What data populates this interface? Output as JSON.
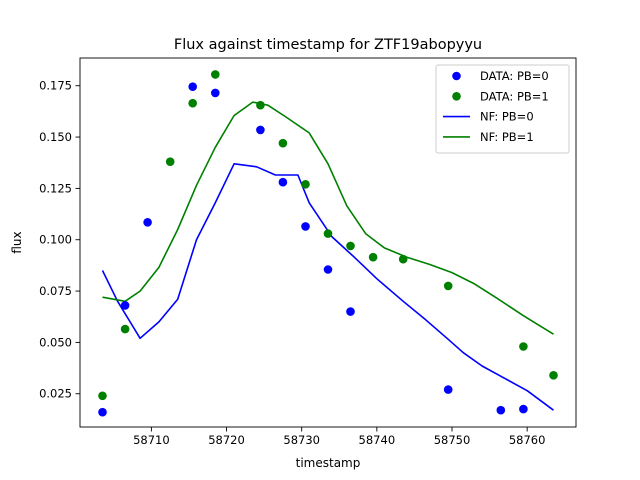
{
  "chart_data": {
    "type": "scatter",
    "title": "Flux against timestamp for ZTF19abopyyu",
    "xlabel": "timestamp",
    "ylabel": "flux",
    "xlim": [
      58700.5,
      58766.5
    ],
    "ylim": [
      0.0088,
      0.1885
    ],
    "xticks": [
      58710,
      58720,
      58730,
      58740,
      58750,
      58760
    ],
    "yticks": [
      0.025,
      0.05,
      0.075,
      0.1,
      0.125,
      0.15,
      0.175
    ],
    "ytick_labels": [
      "0.025",
      "0.050",
      "0.075",
      "0.100",
      "0.125",
      "0.150",
      "0.175"
    ],
    "grid": false,
    "legend_position": "top-right",
    "series": [
      {
        "name": "DATA: PB=0",
        "kind": "scatter",
        "color": "#0000ff",
        "x": [
          58703.5,
          58706.5,
          58709.5,
          58715.5,
          58718.5,
          58724.5,
          58727.5,
          58730.5,
          58733.5,
          58736.5,
          58749.5,
          58756.5,
          58759.5
        ],
        "y": [
          0.016,
          0.068,
          0.1085,
          0.1745,
          0.1715,
          0.1535,
          0.128,
          0.1065,
          0.0855,
          0.065,
          0.027,
          0.017,
          0.0175
        ]
      },
      {
        "name": "DATA: PB=1",
        "kind": "scatter",
        "color": "#008000",
        "x": [
          58703.5,
          58706.5,
          58712.5,
          58715.5,
          58718.5,
          58724.5,
          58727.5,
          58730.5,
          58733.5,
          58736.5,
          58739.5,
          58743.5,
          58749.5,
          58759.5,
          58763.5
        ],
        "y": [
          0.024,
          0.0565,
          0.138,
          0.1665,
          0.1805,
          0.1655,
          0.147,
          0.127,
          0.103,
          0.097,
          0.0915,
          0.0905,
          0.0775,
          0.048,
          0.034
        ]
      },
      {
        "name": "NF: PB=0",
        "kind": "line",
        "color": "#0000ff",
        "x": [
          58703.5,
          58705.5,
          58708.5,
          58711.0,
          58713.5,
          58716.0,
          58718.5,
          58721.0,
          58724.0,
          58726.5,
          58729.5,
          58731.0,
          58734.0,
          58737.0,
          58740.0,
          58743.5,
          58746.5,
          58749.5,
          58751.5,
          58754.0,
          58757.0,
          58760.0,
          58763.5
        ],
        "y": [
          0.085,
          0.07,
          0.052,
          0.06,
          0.071,
          0.1,
          0.118,
          0.137,
          0.1355,
          0.1315,
          0.1315,
          0.118,
          0.1015,
          0.0915,
          0.081,
          0.07,
          0.061,
          0.0515,
          0.045,
          0.0385,
          0.0325,
          0.0265,
          0.017
        ]
      },
      {
        "name": "NF: PB=1",
        "kind": "line",
        "color": "#008000",
        "x": [
          58703.5,
          58706.5,
          58708.5,
          58711.0,
          58713.5,
          58716.0,
          58718.5,
          58721.0,
          58723.5,
          58725.5,
          58728.0,
          58731.0,
          58733.5,
          58736.0,
          58738.5,
          58741.0,
          58744.0,
          58747.0,
          58750.0,
          58753.0,
          58756.0,
          58759.5,
          58763.5
        ],
        "y": [
          0.072,
          0.07,
          0.075,
          0.0865,
          0.105,
          0.1265,
          0.145,
          0.1605,
          0.167,
          0.1655,
          0.1595,
          0.152,
          0.137,
          0.1165,
          0.103,
          0.096,
          0.0915,
          0.088,
          0.084,
          0.0785,
          0.0715,
          0.063,
          0.054
        ]
      }
    ]
  }
}
